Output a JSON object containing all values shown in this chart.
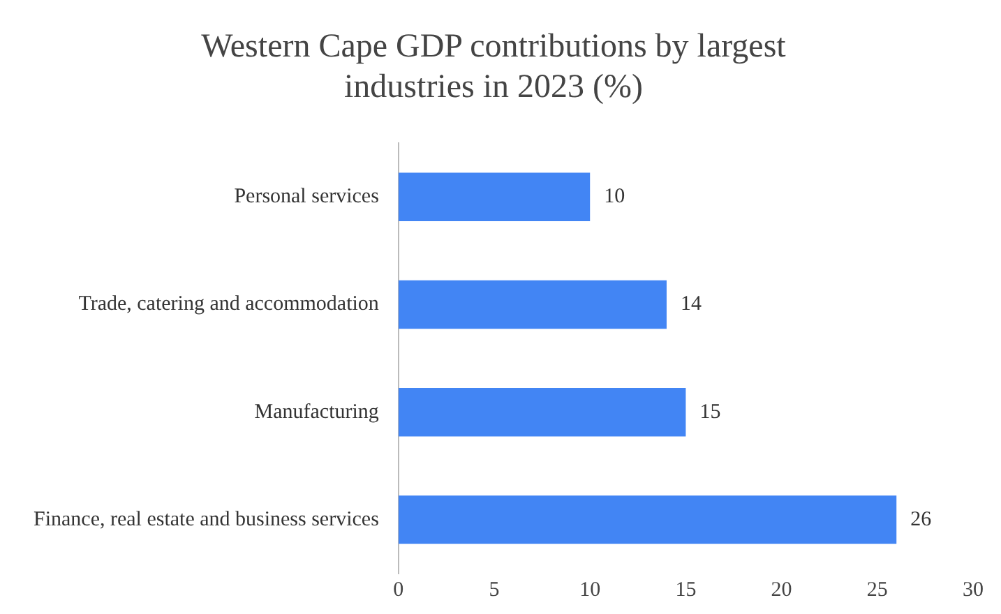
{
  "chart_data": {
    "type": "bar",
    "orientation": "horizontal",
    "title": "Western Cape GDP contributions by largest industries in 2023 (%)",
    "categories": [
      "Personal services",
      "Trade, catering and accommodation",
      "Manufacturing",
      "Finance, real estate and business services"
    ],
    "values": [
      10,
      14,
      15,
      26
    ],
    "color": "#4285f4",
    "xlim": [
      0,
      30
    ],
    "xticks": [
      0,
      5,
      10,
      15,
      20,
      25,
      30
    ],
    "grid": false,
    "legend": false,
    "data_labels": true
  }
}
